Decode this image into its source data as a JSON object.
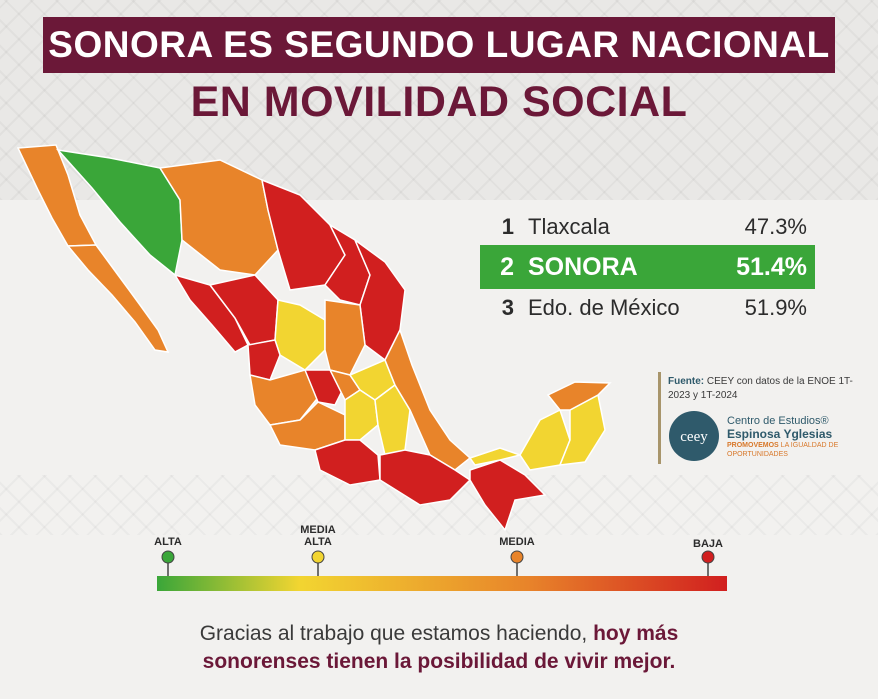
{
  "title": {
    "line1": "SONORA ES SEGUNDO LUGAR NACIONAL",
    "line2": "EN MOVILIDAD SOCIAL"
  },
  "ranking": [
    {
      "rank": "1",
      "state": "Tlaxcala",
      "value": "47.3%"
    },
    {
      "rank": "2",
      "state": "SONORA",
      "value": "51.4%"
    },
    {
      "rank": "3",
      "state": "Edo. de México",
      "value": "51.9%"
    }
  ],
  "source": {
    "label": "Fuente:",
    "text": "CEEY con datos de la ENOE 1T-2023 y 1T-2024"
  },
  "logo": {
    "monogram": "ceey",
    "name_line1": "Centro de Estudios®",
    "name_line2": "Espinosa Yglesias",
    "tagline_bold": "PROMOVEMOS",
    "tagline_rest": " LA IGUALDAD DE OPORTUNIDADES"
  },
  "scale": {
    "alta": "ALTA",
    "media_alta_1": "MEDIA",
    "media_alta_2": "ALTA",
    "media": "MEDIA",
    "baja": "BAJA",
    "colors": {
      "alta": "#3aa639",
      "media_alta": "#f2d531",
      "media": "#e8842a",
      "baja": "#d11f1f"
    }
  },
  "footer": {
    "plain": "Gracias al trabajo que estamos haciendo, ",
    "emphasis_1": "hoy más",
    "emphasis_2": "sonorenses tienen la posibilidad de vivir mejor."
  },
  "colors": {
    "brand": "#6b1838",
    "highlight": "#3aa639"
  }
}
